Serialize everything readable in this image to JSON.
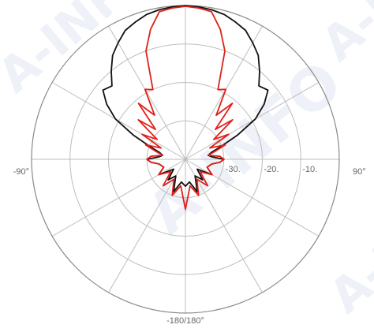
{
  "chart_data": {
    "type": "line",
    "subtype": "polar",
    "title": "",
    "angular_ticks": [
      "-90°",
      "90°",
      "-180/180°"
    ],
    "radial_ticks": [
      "-30.",
      "-20.",
      "-10."
    ],
    "rlim": [
      -40,
      0
    ],
    "angle_range": [
      -180,
      180
    ],
    "grid": true,
    "watermark": "A-INFO",
    "series": [
      {
        "color": "#111111",
        "theta": [
          -180,
          -170,
          -160,
          -150,
          -140,
          -130,
          -120,
          -110,
          -100,
          -95,
          -90,
          -85,
          -80,
          -75,
          -70,
          -65,
          -60,
          -55,
          -50,
          -45,
          -40,
          -35,
          -30,
          -25,
          -20,
          -15,
          -10,
          -5,
          0,
          5,
          10,
          15,
          20,
          25,
          30,
          35,
          40,
          45,
          50,
          55,
          60,
          65,
          70,
          75,
          80,
          85,
          90,
          95,
          100,
          110,
          120,
          130,
          140,
          150,
          160,
          170,
          180
        ],
        "r": [
          -33,
          -34,
          -31,
          -35,
          -33,
          -36,
          -32,
          -34,
          -33,
          -31,
          -30,
          -33,
          -34,
          -33,
          -30,
          -25,
          -19,
          -15,
          -12,
          -13,
          -10,
          -7,
          -5,
          -3,
          -2,
          -1,
          -0.5,
          -0.2,
          0,
          -0.2,
          -0.5,
          -1,
          -2,
          -3,
          -5,
          -7,
          -10,
          -13,
          -12,
          -15,
          -19,
          -25,
          -30,
          -33,
          -34,
          -33,
          -30,
          -31,
          -33,
          -34,
          -32,
          -36,
          -33,
          -35,
          -31,
          -34,
          -33
        ]
      },
      {
        "color": "#e0201a",
        "theta": [
          -180,
          -170,
          -160,
          -150,
          -140,
          -130,
          -120,
          -110,
          -100,
          -95,
          -90,
          -85,
          -80,
          -75,
          -70,
          -65,
          -60,
          -55,
          -50,
          -45,
          -40,
          -35,
          -30,
          -25,
          -20,
          -15,
          -10,
          -5,
          0,
          5,
          10,
          15,
          20,
          25,
          30,
          35,
          40,
          45,
          50,
          55,
          60,
          65,
          70,
          75,
          80,
          85,
          90,
          95,
          100,
          110,
          120,
          130,
          140,
          150,
          160,
          170,
          180
        ],
        "r": [
          -27,
          -33,
          -30,
          -34,
          -31,
          -35,
          -32,
          -34,
          -33,
          -31,
          -30,
          -31,
          -34,
          -32,
          -29,
          -33,
          -27,
          -31,
          -24,
          -29,
          -21,
          -26,
          -19,
          -20,
          -10,
          -5,
          -1,
          -0.5,
          -0.2,
          -0.5,
          -1,
          -5,
          -10,
          -20,
          -19,
          -26,
          -21,
          -29,
          -24,
          -31,
          -27,
          -33,
          -29,
          -32,
          -34,
          -31,
          -30,
          -31,
          -33,
          -34,
          -32,
          -35,
          -31,
          -34,
          -30,
          -33,
          -27
        ]
      }
    ]
  }
}
